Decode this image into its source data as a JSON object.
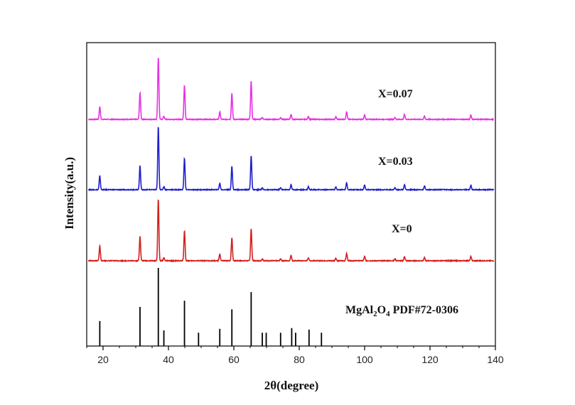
{
  "chart_data": {
    "type": "line",
    "title": "",
    "xlabel": "2θ(degree)",
    "ylabel": "Intensity(a.u.)",
    "xlim": [
      15,
      140
    ],
    "xticks": [
      20,
      40,
      60,
      80,
      100,
      120,
      140
    ],
    "x_tick_labels": [
      "20",
      "40",
      "60",
      "80",
      "100",
      "120",
      "140"
    ],
    "colors": {
      "pink": "#e633e6",
      "blue": "#1f1fcc",
      "red": "#d42020",
      "black": "#000000"
    },
    "series": [
      {
        "name": "X=0.07",
        "color": "#e633e6",
        "peaks": [
          {
            "x": 19.0,
            "h": 0.2
          },
          {
            "x": 31.3,
            "h": 0.43
          },
          {
            "x": 36.9,
            "h": 1.0
          },
          {
            "x": 38.6,
            "h": 0.05
          },
          {
            "x": 44.9,
            "h": 0.55
          },
          {
            "x": 55.7,
            "h": 0.12
          },
          {
            "x": 59.4,
            "h": 0.42
          },
          {
            "x": 65.3,
            "h": 0.62
          },
          {
            "x": 68.7,
            "h": 0.03
          },
          {
            "x": 74.3,
            "h": 0.03
          },
          {
            "x": 77.5,
            "h": 0.08
          },
          {
            "x": 82.8,
            "h": 0.05
          },
          {
            "x": 91.2,
            "h": 0.04
          },
          {
            "x": 94.5,
            "h": 0.12
          },
          {
            "x": 100.0,
            "h": 0.07
          },
          {
            "x": 109.3,
            "h": 0.03
          },
          {
            "x": 112.2,
            "h": 0.08
          },
          {
            "x": 118.3,
            "h": 0.05
          },
          {
            "x": 132.5,
            "h": 0.07
          }
        ]
      },
      {
        "name": "X=0.03",
        "color": "#1f1fcc",
        "peaks": [
          {
            "x": 19.0,
            "h": 0.22
          },
          {
            "x": 31.3,
            "h": 0.38
          },
          {
            "x": 36.9,
            "h": 1.0
          },
          {
            "x": 38.6,
            "h": 0.05
          },
          {
            "x": 44.9,
            "h": 0.5
          },
          {
            "x": 55.7,
            "h": 0.1
          },
          {
            "x": 59.4,
            "h": 0.37
          },
          {
            "x": 65.3,
            "h": 0.54
          },
          {
            "x": 68.7,
            "h": 0.03
          },
          {
            "x": 74.3,
            "h": 0.03
          },
          {
            "x": 77.5,
            "h": 0.08
          },
          {
            "x": 82.8,
            "h": 0.05
          },
          {
            "x": 91.2,
            "h": 0.04
          },
          {
            "x": 94.5,
            "h": 0.11
          },
          {
            "x": 100.0,
            "h": 0.07
          },
          {
            "x": 109.3,
            "h": 0.03
          },
          {
            "x": 112.2,
            "h": 0.08
          },
          {
            "x": 118.3,
            "h": 0.06
          },
          {
            "x": 132.5,
            "h": 0.07
          }
        ]
      },
      {
        "name": "X=0",
        "color": "#d42020",
        "peaks": [
          {
            "x": 19.0,
            "h": 0.24
          },
          {
            "x": 31.3,
            "h": 0.4
          },
          {
            "x": 36.9,
            "h": 1.0
          },
          {
            "x": 38.6,
            "h": 0.05
          },
          {
            "x": 44.9,
            "h": 0.49
          },
          {
            "x": 55.7,
            "h": 0.11
          },
          {
            "x": 59.4,
            "h": 0.37
          },
          {
            "x": 65.3,
            "h": 0.52
          },
          {
            "x": 68.7,
            "h": 0.03
          },
          {
            "x": 74.3,
            "h": 0.03
          },
          {
            "x": 77.5,
            "h": 0.09
          },
          {
            "x": 82.8,
            "h": 0.05
          },
          {
            "x": 91.2,
            "h": 0.04
          },
          {
            "x": 94.5,
            "h": 0.12
          },
          {
            "x": 100.0,
            "h": 0.07
          },
          {
            "x": 109.3,
            "h": 0.03
          },
          {
            "x": 112.2,
            "h": 0.07
          },
          {
            "x": 118.3,
            "h": 0.05
          },
          {
            "x": 132.5,
            "h": 0.07
          }
        ]
      }
    ],
    "reference": {
      "label_parts": [
        "MgAl",
        "2",
        "O",
        "4",
        " PDF#72-0306"
      ],
      "color": "#000000",
      "lines": [
        {
          "x": 19.0,
          "h": 0.32
        },
        {
          "x": 31.3,
          "h": 0.5
        },
        {
          "x": 36.9,
          "h": 1.0
        },
        {
          "x": 38.6,
          "h": 0.2
        },
        {
          "x": 44.9,
          "h": 0.58
        },
        {
          "x": 49.2,
          "h": 0.17
        },
        {
          "x": 55.7,
          "h": 0.22
        },
        {
          "x": 59.4,
          "h": 0.47
        },
        {
          "x": 65.3,
          "h": 0.69
        },
        {
          "x": 68.7,
          "h": 0.17
        },
        {
          "x": 69.9,
          "h": 0.17
        },
        {
          "x": 74.3,
          "h": 0.17
        },
        {
          "x": 77.7,
          "h": 0.23
        },
        {
          "x": 78.9,
          "h": 0.17
        },
        {
          "x": 83.0,
          "h": 0.21
        },
        {
          "x": 86.8,
          "h": 0.17
        }
      ]
    }
  }
}
